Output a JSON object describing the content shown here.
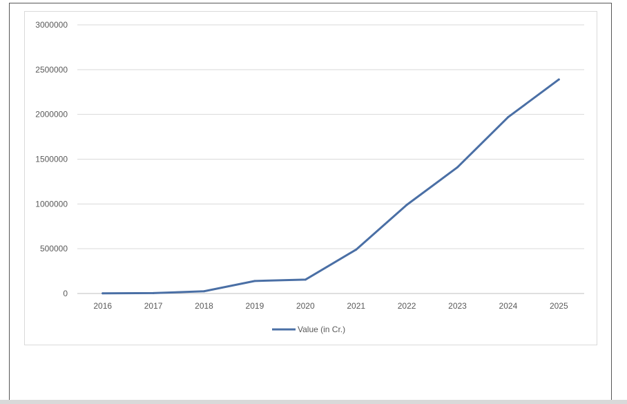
{
  "chart_data": {
    "type": "line",
    "x": [
      "2016",
      "2017",
      "2018",
      "2019",
      "2020",
      "2021",
      "2022",
      "2023",
      "2024",
      "2025"
    ],
    "series": [
      {
        "name": "Value (in Cr.)",
        "values": [
          2000,
          5000,
          25000,
          140000,
          155000,
          490000,
          990000,
          1410000,
          1970000,
          2390000
        ],
        "color": "#4a6fa5"
      }
    ],
    "y_ticks": [
      "0",
      "500000",
      "1000000",
      "1500000",
      "2000000",
      "2500000",
      "3000000"
    ],
    "ylim": [
      0,
      3000000
    ],
    "grid": true,
    "legend": "bottom-center",
    "title": "",
    "xlabel": "",
    "ylabel": ""
  }
}
